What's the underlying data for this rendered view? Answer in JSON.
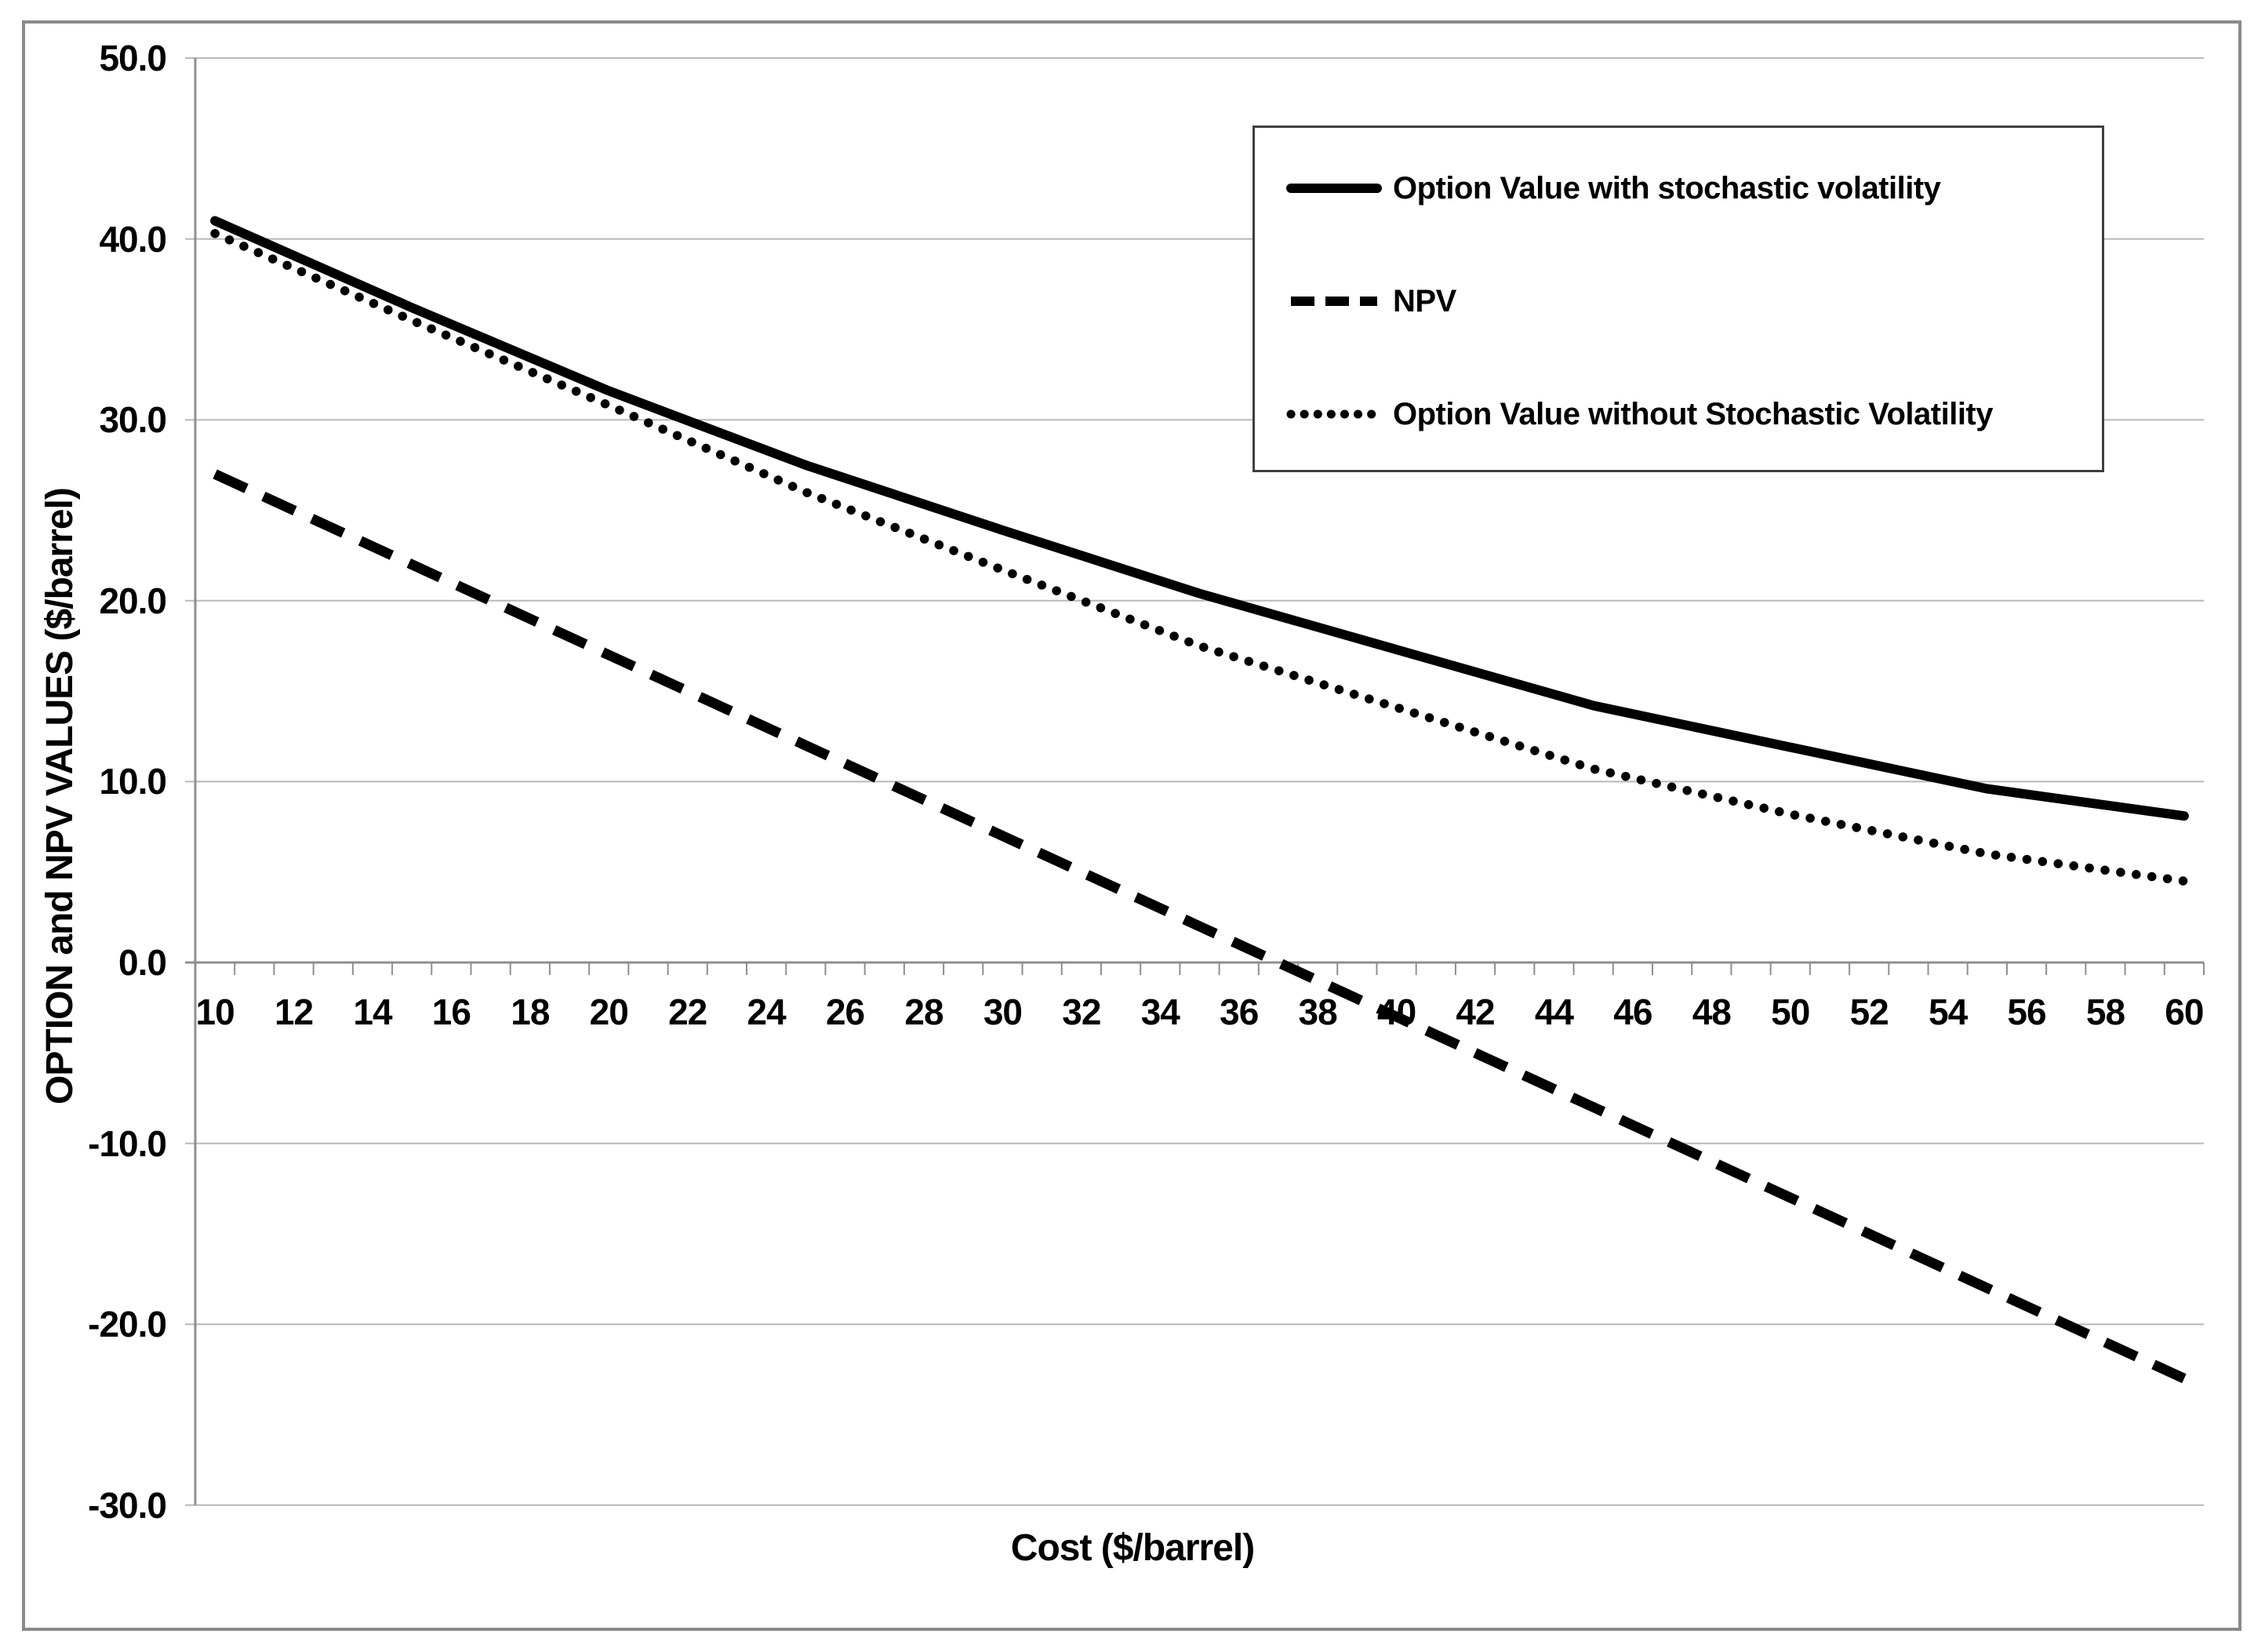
{
  "chart_data": {
    "type": "line",
    "title": "",
    "xlabel": "Cost ($/barrel)",
    "ylabel": "OPTION and NPV VALUES ($/barrel)",
    "x": [
      10,
      15,
      20,
      25,
      30,
      35,
      40,
      45,
      50,
      55,
      60
    ],
    "series": [
      {
        "name": "Option Value with stochastic volatility",
        "style": "solid",
        "values": [
          41.0,
          36.2,
          31.6,
          27.5,
          23.9,
          20.4,
          17.3,
          14.2,
          11.9,
          9.6,
          8.1
        ]
      },
      {
        "name": "NPV",
        "style": "dashed",
        "values": [
          27.0,
          22.0,
          17.0,
          12.0,
          7.0,
          2.0,
          -3.0,
          -8.0,
          -13.0,
          -18.0,
          -23.0
        ]
      },
      {
        "name": "Option Value without Stochastic Volatility",
        "style": "dotted",
        "values": [
          40.3,
          35.5,
          30.8,
          26.0,
          21.7,
          17.5,
          14.1,
          10.7,
          8.2,
          6.0,
          4.5
        ]
      }
    ],
    "xlim": [
      9.5,
      60.5
    ],
    "ylim": [
      -30,
      50
    ],
    "y_tick_step": 10,
    "x_label_step": 2,
    "x_minor_tick_step": 1,
    "x_tick_labels": [
      "10",
      "12",
      "14",
      "16",
      "18",
      "20",
      "22",
      "24",
      "26",
      "28",
      "30",
      "32",
      "34",
      "36",
      "38",
      "40",
      "42",
      "44",
      "46",
      "48",
      "50",
      "52",
      "54",
      "56",
      "58",
      "60"
    ],
    "y_tick_labels": [
      "50.0",
      "40.0",
      "30.0",
      "20.0",
      "10.0",
      "0.0",
      "-10.0",
      "-20.0",
      "-30.0"
    ],
    "grid": "horizontal-only",
    "legend_position": "top-right",
    "colors": {
      "series": "#000000",
      "grid": "#b8b8b8",
      "axis": "#8f8f8f",
      "chart_border": "#8a8a8a",
      "legend_border": "#3f3f3f",
      "background": "#ffffff",
      "text": "#000000"
    }
  }
}
